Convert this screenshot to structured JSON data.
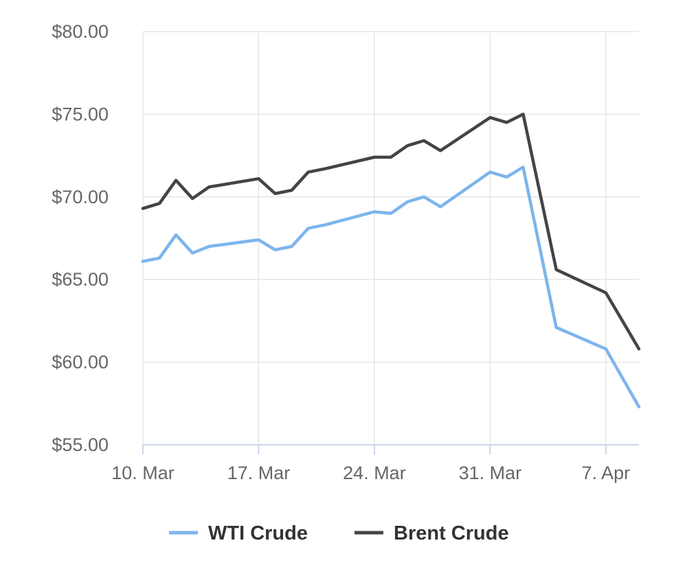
{
  "chart_data": {
    "type": "line",
    "title": "",
    "xlabel": "",
    "ylabel": "",
    "ylim": [
      55,
      80
    ],
    "xlim": [
      "2025-03-10",
      "2025-04-09"
    ],
    "x_tick_labels": [
      "10. Mar",
      "17. Mar",
      "24. Mar",
      "31. Mar",
      "7. Apr"
    ],
    "x_tick_dates": [
      "2025-03-10",
      "2025-03-17",
      "2025-03-24",
      "2025-03-31",
      "2025-04-07"
    ],
    "y_ticks": [
      55,
      60,
      65,
      70,
      75,
      80
    ],
    "y_tick_labels": [
      "$55.00",
      "$60.00",
      "$65.00",
      "$70.00",
      "$75.00",
      "$80.00"
    ],
    "grid": true,
    "legend_position": "bottom-center",
    "x": [
      "2025-03-10",
      "2025-03-11",
      "2025-03-12",
      "2025-03-13",
      "2025-03-14",
      "2025-03-17",
      "2025-03-18",
      "2025-03-19",
      "2025-03-20",
      "2025-03-21",
      "2025-03-24",
      "2025-03-25",
      "2025-03-26",
      "2025-03-27",
      "2025-03-28",
      "2025-03-31",
      "2025-04-01",
      "2025-04-02",
      "2025-04-04",
      "2025-04-07",
      "2025-04-09"
    ],
    "series": [
      {
        "name": "WTI Crude",
        "color": "#7cb5ec",
        "values": [
          66.1,
          66.3,
          67.7,
          66.6,
          67.0,
          67.4,
          66.8,
          67.0,
          68.1,
          68.3,
          69.1,
          69.0,
          69.7,
          70.0,
          69.4,
          71.5,
          71.2,
          71.8,
          62.1,
          60.8,
          57.3
        ]
      },
      {
        "name": "Brent Crude",
        "color": "#434348",
        "values": [
          69.3,
          69.6,
          71.0,
          69.9,
          70.6,
          71.1,
          70.2,
          70.4,
          71.5,
          71.7,
          72.4,
          72.4,
          73.1,
          73.4,
          72.8,
          74.8,
          74.5,
          75.0,
          65.6,
          64.2,
          60.8
        ]
      }
    ]
  }
}
